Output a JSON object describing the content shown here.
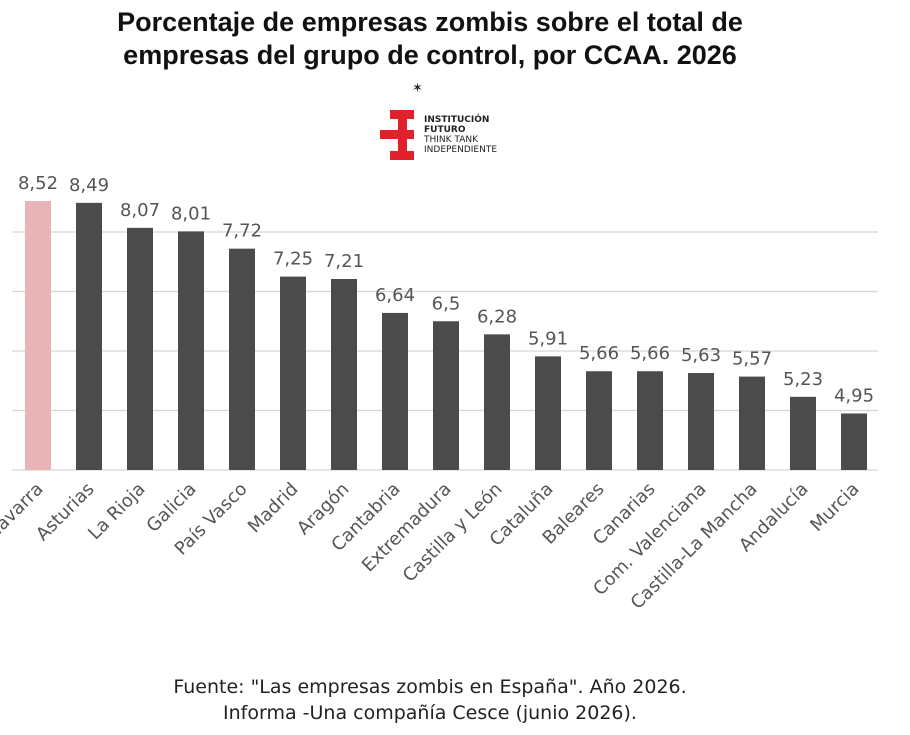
{
  "title_line1": "Porcentaje de empresas zombis sobre el total de",
  "title_line2": "empresas del grupo de control, por CCAA. 2026",
  "logo": {
    "line1": "INSTITUCIÓN",
    "line2": "FUTURO",
    "line3": "THINK TANK",
    "line4": "INDEPENDIENTE",
    "color": "#e0202a"
  },
  "footer_line1": "Fuente: \"Las empresas zombis en España\". Año 2026.",
  "footer_line2": "Informa -Una compañía Cesce (junio 2026).",
  "chart_data": {
    "type": "bar",
    "title": "Porcentaje de empresas zombis sobre el total de empresas del grupo de control, por CCAA. 2026",
    "categories": [
      "Navarra",
      "Asturias",
      "La Rioja",
      "Galicia",
      "País Vasco",
      "Madrid",
      "Aragón",
      "Cantabria",
      "Extremadura",
      "Castilla y León",
      "Cataluña",
      "Baleares",
      "Canarias",
      "Com. Valenciana",
      "Castilla-La Mancha",
      "Andalucía",
      "Murcia"
    ],
    "values": [
      8.52,
      8.49,
      8.07,
      8.01,
      7.72,
      7.25,
      7.21,
      6.64,
      6.5,
      6.28,
      5.91,
      5.66,
      5.66,
      5.63,
      5.57,
      5.23,
      4.95
    ],
    "value_labels": [
      "8,52",
      "8,49",
      "8,07",
      "8,01",
      "7,72",
      "7,25",
      "7,21",
      "6,64",
      "6,5",
      "6,28",
      "5,91",
      "5,66",
      "5,66",
      "5,63",
      "5,57",
      "5,23",
      "4,95"
    ],
    "ylim": [
      4,
      9
    ],
    "grid": true,
    "colors": {
      "highlight": "#e8b4b8",
      "bar": "#4b4b4b",
      "grid": "#d6d6d6",
      "label": "#555555"
    },
    "highlight_index": 0
  }
}
